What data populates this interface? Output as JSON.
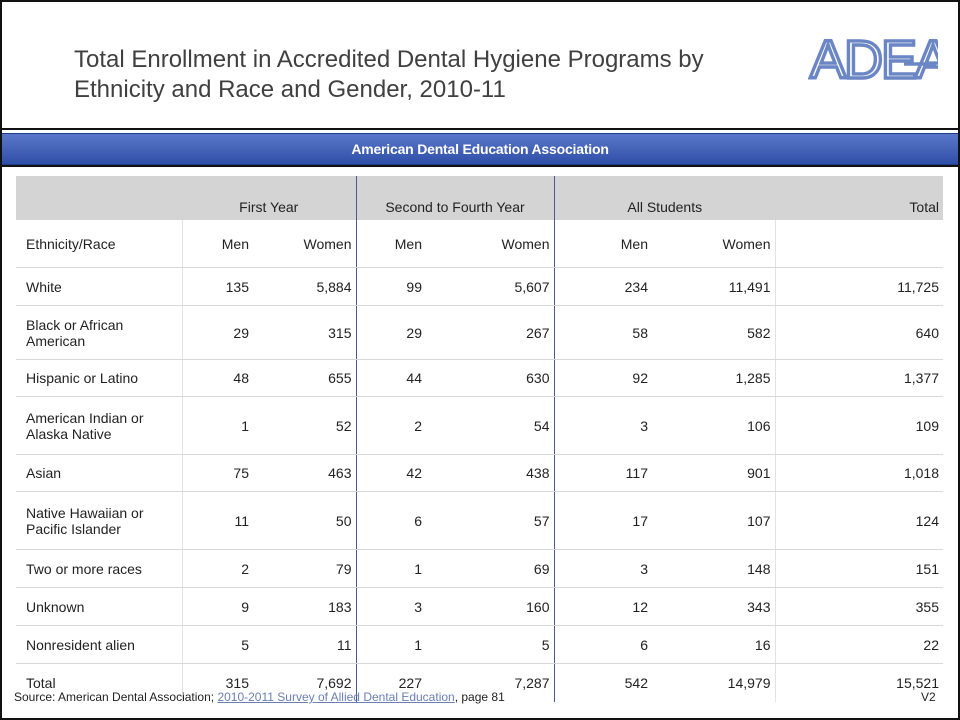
{
  "title": "Total Enrollment in Accredited Dental Hygiene Programs by Ethnicity and Race and Gender, 2010-11",
  "logo_text": "ADEA",
  "banner": "American Dental Education Association",
  "table": {
    "group_headers": [
      "First Year",
      "Second to Fourth Year",
      "All Students",
      "Total"
    ],
    "sub_headers": [
      "Ethnicity/Race",
      "Men",
      "Women",
      "Men",
      "Women",
      "Men",
      "Women"
    ],
    "rows": [
      {
        "label": "White",
        "values": [
          "135",
          "5,884",
          "99",
          "5,607",
          "234",
          "11,491",
          "11,725"
        ]
      },
      {
        "label": "Black or African American",
        "values": [
          "29",
          "315",
          "29",
          "267",
          "58",
          "582",
          "640"
        ]
      },
      {
        "label": "Hispanic or Latino",
        "values": [
          "48",
          "655",
          "44",
          "630",
          "92",
          "1,285",
          "1,377"
        ]
      },
      {
        "label": "American Indian or Alaska Native",
        "values": [
          "1",
          "52",
          "2",
          "54",
          "3",
          "106",
          "109"
        ]
      },
      {
        "label": "Asian",
        "values": [
          "75",
          "463",
          "42",
          "438",
          "117",
          "901",
          "1,018"
        ]
      },
      {
        "label": "Native Hawaiian or Pacific Islander",
        "values": [
          "11",
          "50",
          "6",
          "57",
          "17",
          "107",
          "124"
        ]
      },
      {
        "label": "Two or more races",
        "values": [
          "2",
          "79",
          "1",
          "69",
          "3",
          "148",
          "151"
        ]
      },
      {
        "label": "Unknown",
        "values": [
          "9",
          "183",
          "3",
          "160",
          "12",
          "343",
          "355"
        ]
      },
      {
        "label": "Nonresident alien",
        "values": [
          "5",
          "11",
          "1",
          "5",
          "6",
          "16",
          "22"
        ]
      },
      {
        "label": "Total",
        "values": [
          "315",
          "7,692",
          "227",
          "7,287",
          "542",
          "14,979",
          "15,521"
        ]
      }
    ]
  },
  "footer": {
    "source_prefix": "Source: American Dental Association; ",
    "source_link": "2010-2011 Survey of Allied Dental Education",
    "source_suffix": ", page 81",
    "version": "V2"
  },
  "colors": {
    "banner": "#2f4fa8",
    "logo": "#6b86c4",
    "header_bg": "#d4d4d4",
    "link": "#6b7fb5"
  }
}
